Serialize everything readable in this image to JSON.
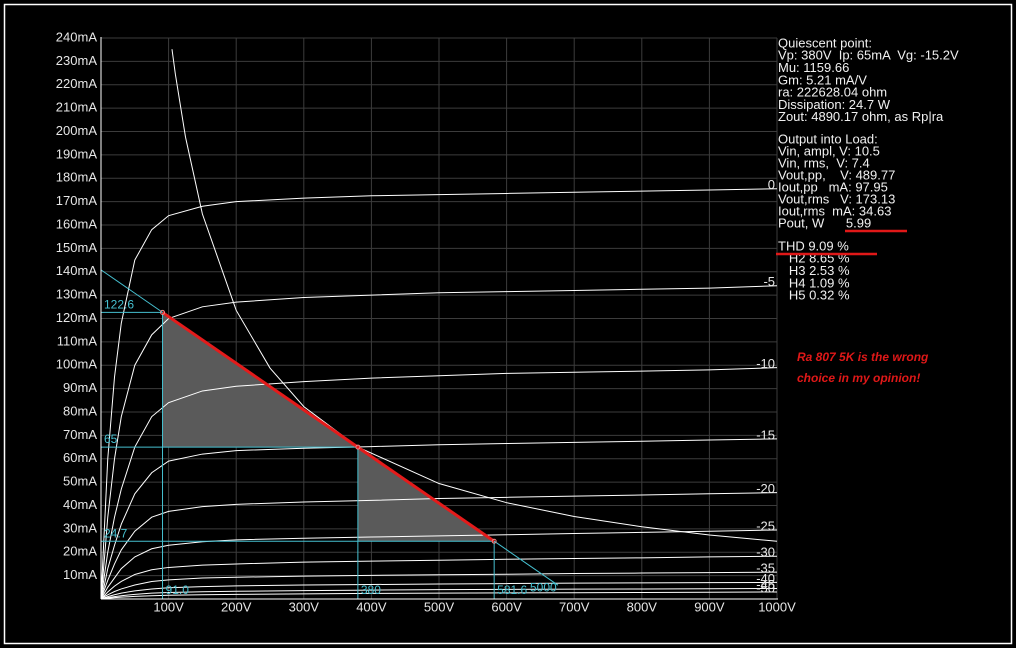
{
  "chart_data": {
    "type": "line",
    "xlim": [
      0,
      1000
    ],
    "ylim": [
      0,
      240
    ],
    "xticks": [
      {
        "value": 100,
        "label": "100V"
      },
      {
        "value": 200,
        "label": "200V"
      },
      {
        "value": 300,
        "label": "300V"
      },
      {
        "value": 400,
        "label": "400V"
      },
      {
        "value": 500,
        "label": "500V"
      },
      {
        "value": 600,
        "label": "600V"
      },
      {
        "value": 700,
        "label": "700V"
      },
      {
        "value": 800,
        "label": "800V"
      },
      {
        "value": 900,
        "label": "900V"
      },
      {
        "value": 1000,
        "label": "1000V"
      }
    ],
    "yticks": [
      {
        "value": 10,
        "label": "10mA"
      },
      {
        "value": 20,
        "label": "20mA"
      },
      {
        "value": 30,
        "label": "30mA"
      },
      {
        "value": 40,
        "label": "40mA"
      },
      {
        "value": 50,
        "label": "50mA"
      },
      {
        "value": 60,
        "label": "60mA"
      },
      {
        "value": 70,
        "label": "70mA"
      },
      {
        "value": 80,
        "label": "80mA"
      },
      {
        "value": 90,
        "label": "90mA"
      },
      {
        "value": 100,
        "label": "100mA"
      },
      {
        "value": 110,
        "label": "110mA"
      },
      {
        "value": 120,
        "label": "120mA"
      },
      {
        "value": 130,
        "label": "130mA"
      },
      {
        "value": 140,
        "label": "140mA"
      },
      {
        "value": 150,
        "label": "150mA"
      },
      {
        "value": 160,
        "label": "160mA"
      },
      {
        "value": 170,
        "label": "170mA"
      },
      {
        "value": 180,
        "label": "180mA"
      },
      {
        "value": 190,
        "label": "190mA"
      },
      {
        "value": 200,
        "label": "200mA"
      },
      {
        "value": 210,
        "label": "210mA"
      },
      {
        "value": 220,
        "label": "220mA"
      },
      {
        "value": 230,
        "label": "230mA"
      },
      {
        "value": 240,
        "label": "240mA"
      }
    ],
    "grid": true,
    "x": [
      0,
      5,
      10,
      20,
      30,
      50,
      75,
      100,
      150,
      200,
      300,
      400,
      500,
      600,
      700,
      800,
      900,
      1000
    ],
    "series": [
      {
        "name": "0",
        "color": "#ffffff",
        "values": [
          0,
          30,
          60,
          95,
          118,
          145,
          158,
          164,
          168,
          170,
          171.5,
          172.5,
          173,
          173.5,
          174,
          174.5,
          175,
          175.5
        ]
      },
      {
        "name": "-5",
        "color": "#ffffff",
        "values": [
          0,
          17,
          35,
          60,
          78,
          100,
          113,
          120,
          125,
          127,
          129,
          130,
          131,
          131.5,
          132,
          132.5,
          133,
          134
        ]
      },
      {
        "name": "-10",
        "color": "#ffffff",
        "values": [
          0,
          10,
          20,
          35,
          47,
          65,
          78,
          84,
          89,
          91,
          93,
          94.5,
          95.5,
          96.5,
          97,
          97.5,
          98,
          99
        ]
      },
      {
        "name": "-15",
        "color": "#ffffff",
        "values": [
          0,
          6,
          13,
          23,
          32,
          45,
          54,
          59,
          62,
          63.5,
          64.5,
          65.2,
          66,
          66.5,
          67,
          67.5,
          68,
          68.5
        ]
      },
      {
        "name": "-20",
        "color": "#ffffff",
        "values": [
          0,
          4,
          8,
          15,
          21,
          29,
          35,
          37.5,
          39.5,
          40.5,
          41.5,
          42.2,
          43,
          43.5,
          44,
          44.5,
          45,
          45.5
        ]
      },
      {
        "name": "-25",
        "color": "#ffffff",
        "values": [
          0,
          2.5,
          5,
          9,
          13,
          18,
          21.5,
          23,
          24.5,
          25.3,
          26,
          26.5,
          27,
          27.5,
          28,
          28.5,
          29,
          29.5
        ]
      },
      {
        "name": "-30",
        "color": "#ffffff",
        "values": [
          0,
          1.5,
          3,
          5.5,
          7.5,
          10.5,
          12.5,
          13.5,
          14.5,
          15,
          15.8,
          16.2,
          16.6,
          17,
          17.3,
          17.6,
          18,
          18.3
        ]
      },
      {
        "name": "-35",
        "color": "#ffffff",
        "values": [
          0,
          1,
          1.8,
          3.2,
          4.3,
          6,
          7.5,
          8.2,
          9,
          9.3,
          9.8,
          10.1,
          10.4,
          10.6,
          10.9,
          11.1,
          11.3,
          11.5
        ]
      },
      {
        "name": "-40",
        "color": "#ffffff",
        "values": [
          0,
          0.5,
          1,
          1.8,
          2.5,
          3.5,
          4.3,
          4.8,
          5.3,
          5.6,
          6,
          6.2,
          6.4,
          6.6,
          6.8,
          6.9,
          7,
          7.1
        ]
      },
      {
        "name": "-45",
        "color": "#ffffff",
        "values": [
          0,
          0.3,
          0.6,
          1,
          1.4,
          2,
          2.5,
          2.8,
          3.1,
          3.3,
          3.6,
          3.8,
          4,
          4.1,
          4.2,
          4.3,
          4.4,
          4.5
        ]
      },
      {
        "name": "-50",
        "color": "#ffffff",
        "values": [
          0,
          0.2,
          0.3,
          0.6,
          0.8,
          1.1,
          1.4,
          1.6,
          1.8,
          2,
          2.2,
          2.4,
          2.5,
          2.6,
          2.7,
          2.8,
          2.9,
          3
        ]
      }
    ],
    "dissipation_curve": {
      "color": "#ffffff",
      "x": [
        105,
        110,
        125,
        150,
        200,
        250,
        300,
        380,
        500,
        600,
        700,
        800,
        900,
        1000
      ],
      "values": [
        235.2,
        224.5,
        197.6,
        164.7,
        123.5,
        98.8,
        82.3,
        65,
        49.4,
        41.2,
        35.3,
        30.9,
        27.4,
        24.7
      ]
    },
    "load_line": {
      "color": "#46c0d0",
      "label": "5000",
      "x": [
        0,
        676
      ],
      "values": [
        140.8,
        5.9
      ]
    },
    "operating_line_color": "#e41b1b",
    "guides": [
      {
        "x": {
          "value": 91,
          "label": "91.0"
        },
        "y": 122.6
      },
      {
        "x": 380,
        "y": 65
      },
      {
        "x": 581.6,
        "y": 24.7
      }
    ],
    "info_panel": [
      [
        "Quiescent point:",
        "Vp: 380V  Ip: 65mA  Vg: -15.2V",
        "Mu: 1159.66",
        "Gm: 5.21 mA/V",
        "ra: 222628.04 ohm",
        "Dissipation: 24.7 W",
        "Zout: 4890.17 ohm, as Rp|ra"
      ],
      [
        "Output into Load:",
        "Vin, ampl, V: 10.5",
        "Vin, rms,  V: 7.4",
        "Vout,pp,    V: 489.77",
        "Iout,pp   mA: 97.95",
        "Vout,rms   V: 173.13",
        "Iout,rms  mA: 34.63",
        "Pout, W      5.99"
      ],
      [
        "THD 9.09 %",
        "   H2 8.65 %",
        "   H3 2.53 %",
        "   H4 1.09 %",
        "   H5 0.32 %"
      ]
    ],
    "annotation": [
      "Ra 807 5K is the wrong",
      "choice in my opinion!"
    ]
  }
}
